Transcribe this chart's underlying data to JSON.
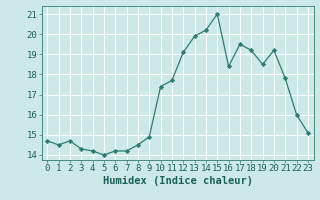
{
  "x": [
    0,
    1,
    2,
    3,
    4,
    5,
    6,
    7,
    8,
    9,
    10,
    11,
    12,
    13,
    14,
    15,
    16,
    17,
    18,
    19,
    20,
    21,
    22,
    23
  ],
  "y": [
    14.7,
    14.5,
    14.7,
    14.3,
    14.2,
    14.0,
    14.2,
    14.2,
    14.5,
    14.9,
    17.4,
    17.7,
    19.1,
    19.9,
    20.2,
    21.0,
    18.4,
    19.5,
    19.2,
    18.5,
    19.2,
    17.8,
    16.0,
    15.1
  ],
  "line_color": "#2d7d6e",
  "marker": "D",
  "marker_size": 2.2,
  "bg_color": "#cce9e8",
  "grid_color": "#ffffff",
  "xlabel": "Humidex (Indice chaleur)",
  "ylabel_ticks": [
    14,
    15,
    16,
    17,
    18,
    19,
    20,
    21
  ],
  "xlim": [
    -0.5,
    23.5
  ],
  "ylim": [
    13.75,
    21.4
  ],
  "tick_label_fontsize": 6.5,
  "xlabel_fontsize": 7.5,
  "line_width": 0.9
}
